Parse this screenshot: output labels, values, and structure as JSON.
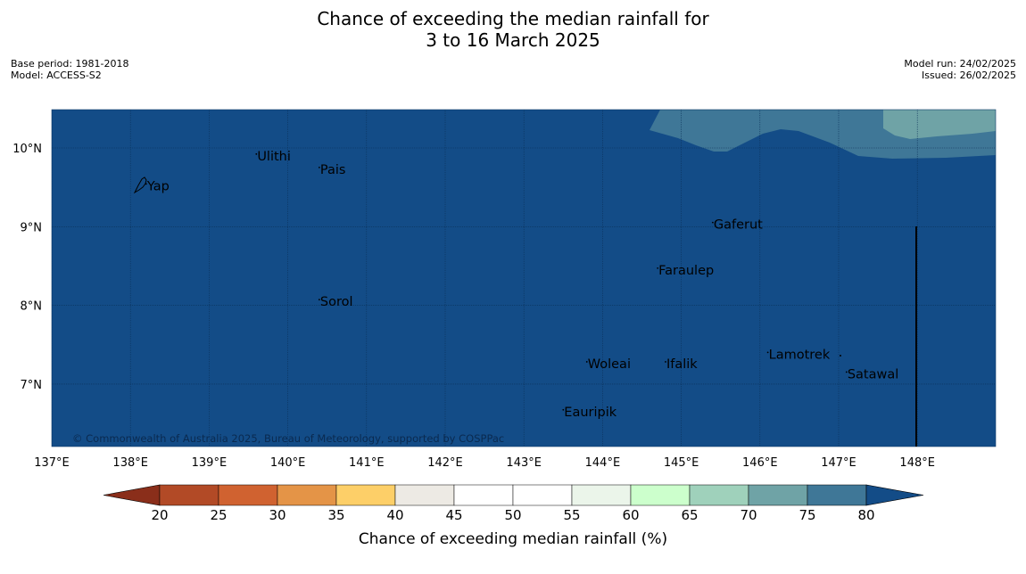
{
  "title_line1": "Chance of exceeding the median rainfall for",
  "title_line2": "3 to 16 March 2025",
  "left_meta": {
    "base_period": "Base period: 1981-2018",
    "model": "Model: ACCESS-S2"
  },
  "right_meta": {
    "model_run": "Model run: 24/02/2025",
    "issued": "Issued: 26/02/2025"
  },
  "copyright": "© Commonwealth of Australia 2025, Bureau of Meteorology, supported by COSPPac",
  "map": {
    "lon_labels": [
      "137°E",
      "138°E",
      "139°E",
      "140°E",
      "141°E",
      "142°E",
      "143°E",
      "144°E",
      "145°E",
      "146°E",
      "147°E",
      "148°E"
    ],
    "lat_labels": [
      "10°N",
      "9°N",
      "8°N",
      "7°N"
    ],
    "places": [
      {
        "name": "Ulithi",
        "lon": 139.6,
        "lat": 9.9
      },
      {
        "name": "Pais",
        "lon": 140.4,
        "lat": 9.73
      },
      {
        "name": "Yap",
        "lon": 138.2,
        "lat": 9.52
      },
      {
        "name": "Gaferut",
        "lon": 145.4,
        "lat": 9.03
      },
      {
        "name": "Faraulep",
        "lon": 144.7,
        "lat": 8.45
      },
      {
        "name": "Sorol",
        "lon": 140.4,
        "lat": 8.05
      },
      {
        "name": "Lamotrek",
        "lon": 146.1,
        "lat": 7.38
      },
      {
        "name": "Woleai",
        "lon": 143.8,
        "lat": 7.26
      },
      {
        "name": "Ifalik",
        "lon": 144.8,
        "lat": 7.26
      },
      {
        "name": "Satawal",
        "lon": 147.1,
        "lat": 7.13
      },
      {
        "name": "Eauripik",
        "lon": 143.5,
        "lat": 6.65
      }
    ],
    "colors": {
      "base": "#134c87",
      "band75": "#3f7797",
      "band70": "#6fa3a6"
    }
  },
  "colorbar": {
    "title": "Chance of exceeding median rainfall (%)",
    "ticks": [
      "20",
      "25",
      "30",
      "35",
      "40",
      "45",
      "50",
      "55",
      "60",
      "65",
      "70",
      "75",
      "80"
    ],
    "low_extend_color": "#8a2e1a",
    "high_extend_color": "#134c87",
    "colors": [
      "#b24a26",
      "#d06230",
      "#e49447",
      "#fdcf68",
      "#edeae4",
      "#ffffff",
      "#ffffff",
      "#ebf5ea",
      "#ccffcc",
      "#9fd1bb",
      "#6fa3a6",
      "#3f7797"
    ]
  }
}
